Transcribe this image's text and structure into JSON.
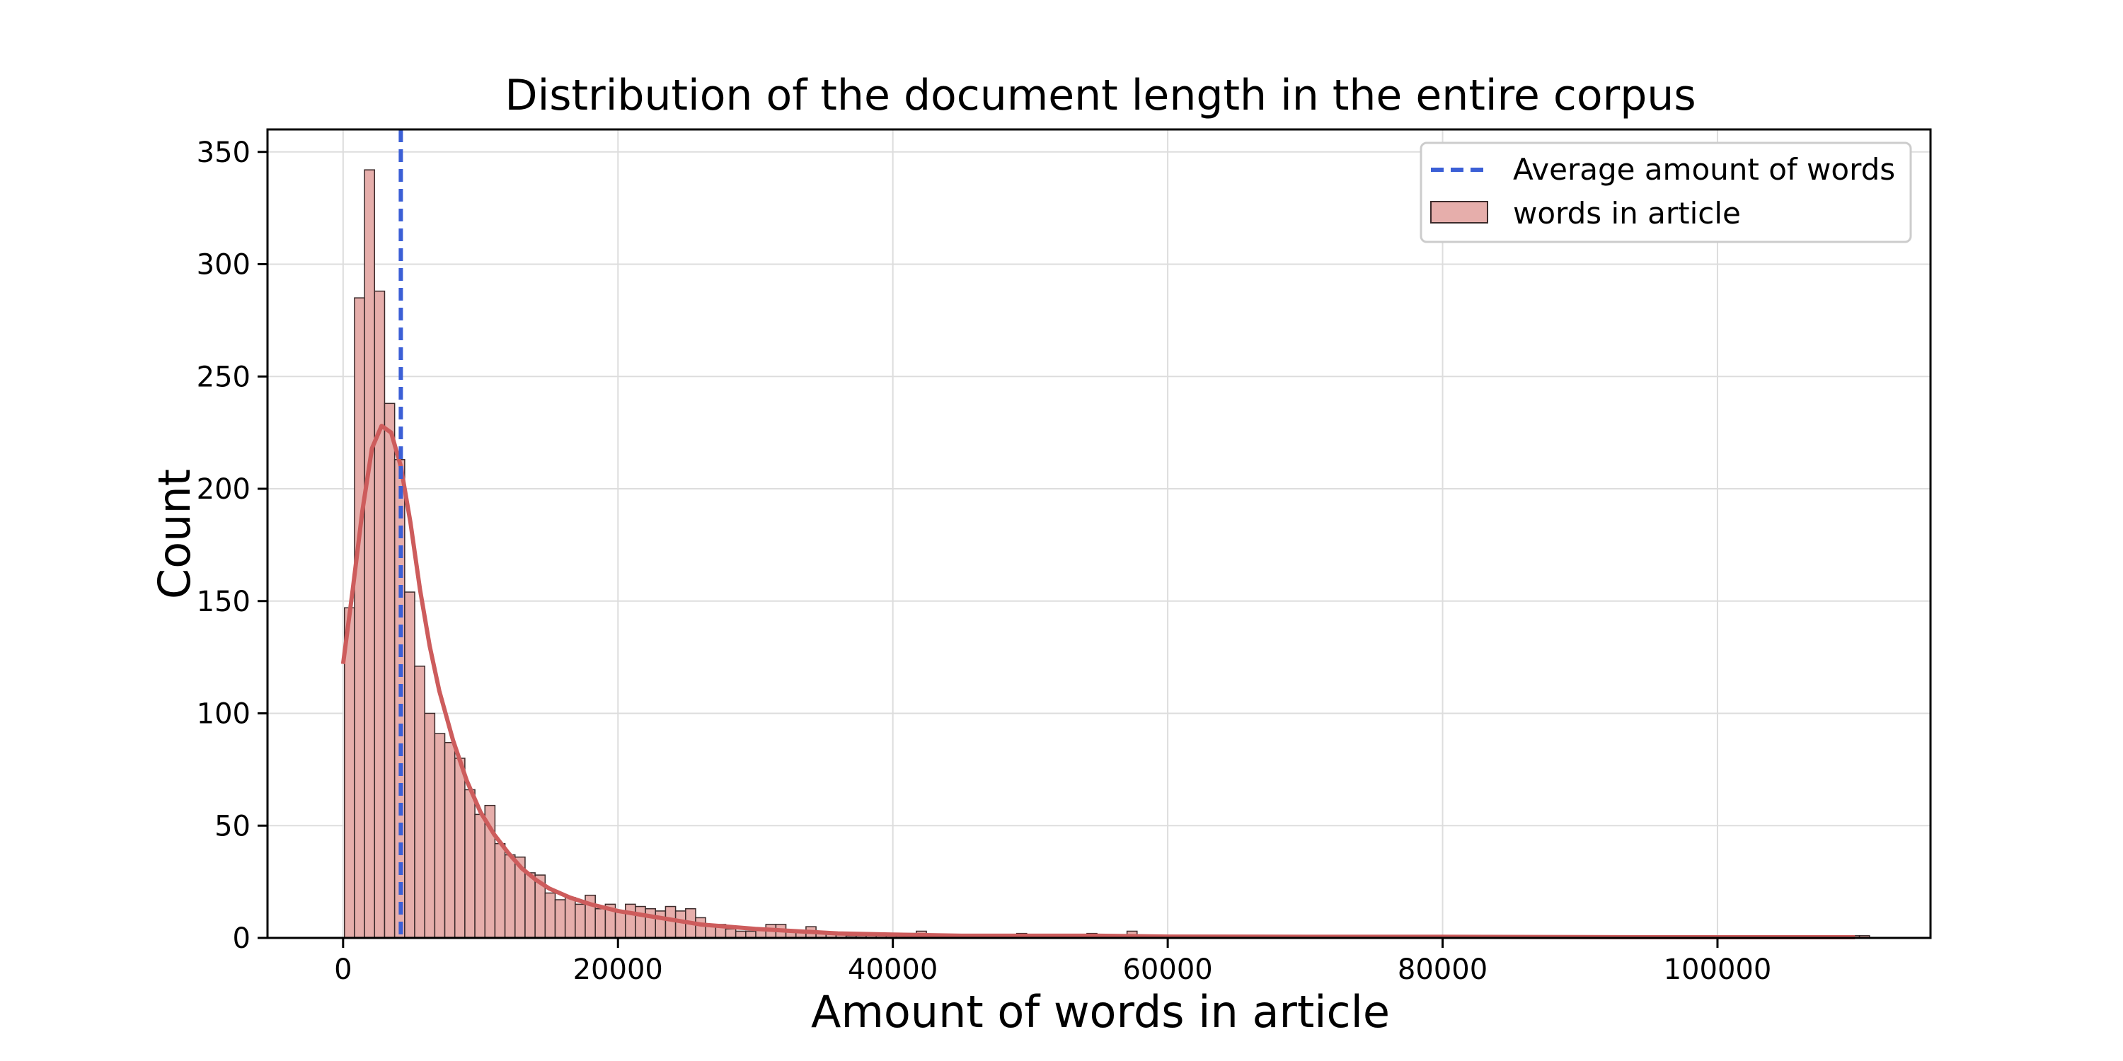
{
  "chart_data": {
    "type": "bar",
    "title": "Distribution of the document length in the entire corpus",
    "xlabel": "Amount of words in article",
    "ylabel": "Count",
    "xlim": [
      -5500,
      115500
    ],
    "ylim": [
      0,
      360
    ],
    "xticks": [
      0,
      20000,
      40000,
      60000,
      80000,
      100000
    ],
    "yticks": [
      0,
      50,
      100,
      150,
      200,
      250,
      300,
      350
    ],
    "grid": true,
    "legend_position": "top-right",
    "bin_width": 730,
    "bin_start": 100,
    "series": [
      {
        "name": "words in article",
        "kind": "histogram",
        "color": "#e6aeab",
        "edgecolor": "#3b2a2a",
        "values": [
          147,
          285,
          342,
          288,
          238,
          213,
          154,
          121,
          100,
          91,
          87,
          80,
          66,
          55,
          59,
          42,
          37,
          36,
          29,
          28,
          20,
          17,
          18,
          15,
          19,
          13,
          15,
          12,
          15,
          14,
          13,
          12,
          14,
          12,
          13,
          9,
          6,
          6,
          4,
          3,
          3,
          4,
          6,
          6,
          3,
          3,
          5,
          2,
          2,
          2,
          1,
          1,
          1,
          1,
          1,
          1,
          2,
          3,
          1,
          1,
          1,
          1,
          1,
          1,
          1,
          1,
          1,
          2,
          1,
          1,
          1,
          1,
          1,
          1,
          2,
          1,
          1,
          1,
          3,
          1,
          1,
          1,
          1,
          1,
          1,
          1,
          1,
          1,
          1,
          1,
          1,
          1,
          1,
          1,
          1,
          1,
          1,
          1,
          1,
          1,
          1,
          1,
          1,
          1,
          1,
          1,
          1,
          1,
          1,
          1,
          1,
          1,
          1,
          1,
          1,
          1,
          1,
          1,
          1,
          1,
          1,
          1,
          1,
          1,
          1,
          1,
          1,
          1,
          1,
          1,
          1,
          1,
          1,
          1,
          1,
          1,
          1,
          1,
          1,
          1,
          1,
          1,
          1,
          1,
          1,
          1,
          1,
          1,
          1,
          1,
          1,
          1
        ]
      },
      {
        "name": "kde",
        "kind": "line",
        "color": "#cd5c5c",
        "x": [
          0,
          700,
          1400,
          2100,
          2800,
          3500,
          4200,
          4900,
          5600,
          6300,
          7000,
          8000,
          9000,
          10000,
          11000,
          12000,
          13000,
          14000,
          15000,
          16500,
          18000,
          20000,
          22000,
          24000,
          26000,
          28000,
          30000,
          33000,
          36000,
          40000,
          45000,
          50000,
          55000,
          60000,
          70000,
          80000,
          90000,
          100000,
          110000
        ],
        "y": [
          122,
          155,
          190,
          218,
          228,
          225,
          210,
          185,
          155,
          130,
          110,
          88,
          70,
          56,
          46,
          38,
          31,
          26,
          22,
          18,
          15,
          12,
          10,
          8,
          6,
          5,
          4,
          3,
          2,
          1.5,
          1,
          1,
          1,
          0.6,
          0.5,
          0.5,
          0.4,
          0.3,
          0.3
        ]
      },
      {
        "name": "Average amount of words",
        "kind": "vline",
        "color": "#3b5fd6",
        "x": 4200
      }
    ],
    "legend": [
      "Average amount of words",
      "words in article"
    ]
  }
}
